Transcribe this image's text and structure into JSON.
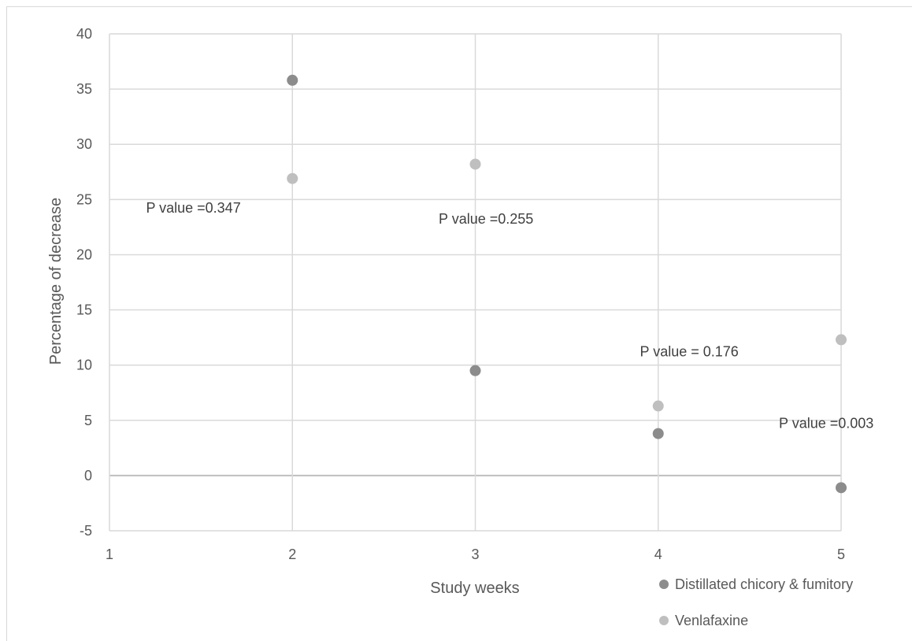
{
  "chart_data": {
    "type": "scatter",
    "title": "",
    "xlabel": "Study weeks",
    "ylabel": "Percentage of decrease",
    "xlim": [
      1,
      5
    ],
    "ylim": [
      -5,
      40
    ],
    "x_ticks": [
      "1",
      "2",
      "3",
      "4",
      "5"
    ],
    "y_ticks": [
      "-5",
      "0",
      "5",
      "10",
      "15",
      "20",
      "25",
      "30",
      "35",
      "40"
    ],
    "grid": true,
    "legend_position": "bottom-right",
    "series": [
      {
        "name": "Distillated chicory & fumitory",
        "color": "#8c8c8c",
        "x": [
          2,
          3,
          4,
          5
        ],
        "y": [
          35.8,
          9.5,
          3.8,
          -1.1
        ]
      },
      {
        "name": "Venlafaxine",
        "color": "#bfbfbf",
        "x": [
          2,
          3,
          4,
          5
        ],
        "y": [
          26.9,
          28.2,
          6.3,
          12.3
        ]
      }
    ],
    "annotations": [
      {
        "text": "P value =0.347",
        "x": 1.2,
        "y": 23.8
      },
      {
        "text": "P value =0.255",
        "x": 2.8,
        "y": 22.8
      },
      {
        "text": "P value = 0.176",
        "x": 3.9,
        "y": 10.8
      },
      {
        "text": "P value =0.003",
        "x": 4.66,
        "y": 4.3
      }
    ]
  }
}
